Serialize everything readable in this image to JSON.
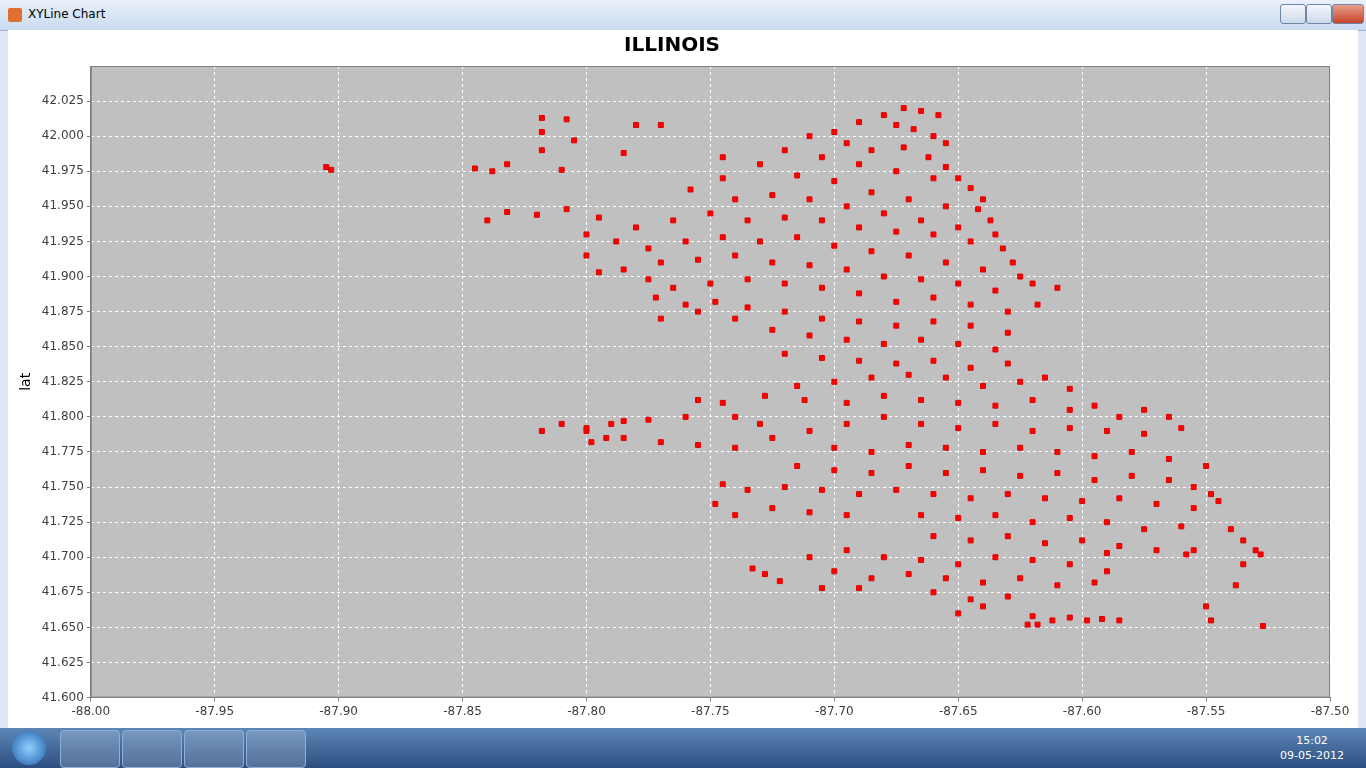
{
  "window": {
    "title": "XYLine Chart"
  },
  "taskbar": {
    "time": "15:02",
    "date": "09-05-2012"
  },
  "chart_data": {
    "type": "scatter",
    "title": "ILLINOIS",
    "y_label": "lat",
    "color": "#ff0000",
    "marker": "square",
    "grid": true,
    "xlim": [
      -88.0,
      -87.5
    ],
    "ylim": [
      41.6,
      42.05
    ],
    "xticks": [
      {
        "value": -88.0,
        "label": "-88.00"
      },
      {
        "value": -87.95,
        "label": "-87.95"
      },
      {
        "value": -87.9,
        "label": "-87.90"
      },
      {
        "value": -87.85,
        "label": "-87.85"
      },
      {
        "value": -87.8,
        "label": "-87.80"
      },
      {
        "value": -87.75,
        "label": "-87.75"
      },
      {
        "value": -87.7,
        "label": "-87.70"
      },
      {
        "value": -87.65,
        "label": "-87.65"
      },
      {
        "value": -87.6,
        "label": "-87.60"
      },
      {
        "value": -87.55,
        "label": "-87.55"
      },
      {
        "value": -87.5,
        "label": "-87.50"
      }
    ],
    "yticks": [
      {
        "value": 41.6,
        "label": "41.600"
      },
      {
        "value": 41.625,
        "label": "41.625"
      },
      {
        "value": 41.65,
        "label": "41.650"
      },
      {
        "value": 41.675,
        "label": "41.675"
      },
      {
        "value": 41.7,
        "label": "41.700"
      },
      {
        "value": 41.725,
        "label": "41.725"
      },
      {
        "value": 41.75,
        "label": "41.750"
      },
      {
        "value": 41.775,
        "label": "41.775"
      },
      {
        "value": 41.8,
        "label": "41.800"
      },
      {
        "value": 41.825,
        "label": "41.825"
      },
      {
        "value": 41.85,
        "label": "41.850"
      },
      {
        "value": 41.875,
        "label": "41.875"
      },
      {
        "value": 41.9,
        "label": "41.900"
      },
      {
        "value": 41.925,
        "label": "41.925"
      },
      {
        "value": 41.95,
        "label": "41.950"
      },
      {
        "value": 41.975,
        "label": "41.975"
      },
      {
        "value": 42.0,
        "label": "42.000"
      },
      {
        "value": 42.025,
        "label": "42.025"
      }
    ],
    "x": [
      -87.672,
      -87.665,
      -87.658,
      -87.68,
      -87.69,
      -87.675,
      -87.668,
      -87.66,
      -87.655,
      -87.7,
      -87.71,
      -87.695,
      -87.685,
      -87.672,
      -87.662,
      -87.655,
      -87.65,
      -87.645,
      -87.66,
      -87.675,
      -87.69,
      -87.705,
      -87.72,
      -87.73,
      -87.715,
      -87.7,
      -87.685,
      -87.67,
      -87.655,
      -87.642,
      -87.64,
      -87.745,
      -87.758,
      -87.74,
      -87.725,
      -87.71,
      -87.695,
      -87.68,
      -87.665,
      -87.65,
      -87.637,
      -87.635,
      -87.632,
      -87.628,
      -87.625,
      -87.645,
      -87.66,
      -87.675,
      -87.69,
      -87.705,
      -87.72,
      -87.735,
      -87.75,
      -87.765,
      -87.78,
      -87.795,
      -87.808,
      -87.82,
      -87.832,
      -87.84,
      -87.8,
      -87.788,
      -87.775,
      -87.76,
      -87.745,
      -87.73,
      -87.715,
      -87.7,
      -87.685,
      -87.67,
      -87.655,
      -87.64,
      -87.8,
      -87.795,
      -87.785,
      -87.77,
      -87.755,
      -87.74,
      -87.725,
      -87.71,
      -87.695,
      -87.68,
      -87.665,
      -87.65,
      -87.635,
      -87.62,
      -87.61,
      -87.618,
      -87.63,
      -87.645,
      -87.66,
      -87.675,
      -87.69,
      -87.705,
      -87.72,
      -87.735,
      -87.75,
      -87.765,
      -87.775,
      -87.772,
      -87.76,
      -87.748,
      -87.735,
      -87.72,
      -87.705,
      -87.69,
      -87.675,
      -87.66,
      -87.645,
      -87.63,
      -87.77,
      -87.755,
      -87.74,
      -87.725,
      -87.71,
      -87.695,
      -87.68,
      -87.665,
      -87.65,
      -87.635,
      -87.72,
      -87.705,
      -87.69,
      -87.675,
      -87.66,
      -87.645,
      -87.63,
      -87.625,
      -87.615,
      -87.605,
      -87.64,
      -87.655,
      -87.67,
      -87.685,
      -87.7,
      -87.715,
      -87.728,
      -87.712,
      -87.695,
      -87.68,
      -87.665,
      -87.65,
      -87.635,
      -87.62,
      -87.605,
      -87.595,
      -87.585,
      -87.575,
      -87.565,
      -87.745,
      -87.755,
      -87.74,
      -87.73,
      -87.76,
      -87.775,
      -87.79,
      -87.8,
      -87.798,
      -87.785,
      -87.77,
      -87.755,
      -87.74,
      -87.725,
      -87.71,
      -87.695,
      -87.68,
      -87.665,
      -87.65,
      -87.635,
      -87.62,
      -87.605,
      -87.59,
      -87.575,
      -87.56,
      -87.7,
      -87.685,
      -87.67,
      -87.655,
      -87.64,
      -87.625,
      -87.61,
      -87.595,
      -87.58,
      -87.565,
      -87.55,
      -87.715,
      -87.7,
      -87.685,
      -87.67,
      -87.655,
      -87.64,
      -87.625,
      -87.61,
      -87.595,
      -87.58,
      -87.565,
      -87.555,
      -87.548,
      -87.745,
      -87.735,
      -87.72,
      -87.705,
      -87.69,
      -87.675,
      -87.66,
      -87.645,
      -87.63,
      -87.615,
      -87.6,
      -87.585,
      -87.57,
      -87.555,
      -87.545,
      -87.748,
      -87.74,
      -87.725,
      -87.71,
      -87.695,
      -87.665,
      -87.65,
      -87.635,
      -87.62,
      -87.605,
      -87.59,
      -87.575,
      -87.56,
      -87.66,
      -87.645,
      -87.63,
      -87.615,
      -87.6,
      -87.585,
      -87.57,
      -87.558,
      -87.54,
      -87.535,
      -87.53,
      -87.528,
      -87.68,
      -87.695,
      -87.71,
      -87.665,
      -87.65,
      -87.635,
      -87.62,
      -87.605,
      -87.59,
      -87.7,
      -87.685,
      -87.67,
      -87.655,
      -87.64,
      -87.625,
      -87.61,
      -87.595,
      -87.705,
      -87.69,
      -87.66,
      -87.645,
      -87.63,
      -87.65,
      -87.64,
      -87.62,
      -87.618,
      -87.612,
      -87.605,
      -87.598,
      -87.592,
      -87.585,
      -87.622,
      -87.722,
      -87.733,
      -87.728,
      -87.548,
      -87.55,
      -87.527,
      -87.538,
      -87.535,
      -87.555,
      -87.59,
      -87.8,
      -87.792,
      -87.785,
      -87.81,
      -87.818,
      -87.905,
      -87.903,
      -87.845,
      -87.838,
      -87.832,
      -87.818,
      -87.808,
      -87.818,
      -87.818,
      -87.805,
      -87.81,
      -87.78,
      -87.77,
      -87.785,
      -87.745
    ],
    "values": [
      42.02,
      42.018,
      42.015,
      42.015,
      42.01,
      42.008,
      42.005,
      42.0,
      41.995,
      42.003,
      42.0,
      41.995,
      41.99,
      41.992,
      41.985,
      41.978,
      41.97,
      41.963,
      41.97,
      41.975,
      41.98,
      41.985,
      41.99,
      41.98,
      41.972,
      41.968,
      41.96,
      41.955,
      41.95,
      41.948,
      41.955,
      41.97,
      41.962,
      41.955,
      41.958,
      41.955,
      41.95,
      41.945,
      41.94,
      41.935,
      41.94,
      41.93,
      41.92,
      41.91,
      41.9,
      41.925,
      41.93,
      41.932,
      41.935,
      41.94,
      41.942,
      41.94,
      41.945,
      41.94,
      41.935,
      41.942,
      41.948,
      41.944,
      41.946,
      41.94,
      41.93,
      41.925,
      41.92,
      41.925,
      41.928,
      41.925,
      41.928,
      41.922,
      41.918,
      41.915,
      41.91,
      41.905,
      41.915,
      41.903,
      41.905,
      41.91,
      41.912,
      41.915,
      41.91,
      41.908,
      41.905,
      41.9,
      41.898,
      41.895,
      41.89,
      41.895,
      41.892,
      41.88,
      41.875,
      41.88,
      41.885,
      41.882,
      41.888,
      41.892,
      41.895,
      41.898,
      41.895,
      41.892,
      41.898,
      41.885,
      41.88,
      41.882,
      41.878,
      41.875,
      41.87,
      41.868,
      41.865,
      41.868,
      41.865,
      41.86,
      41.87,
      41.875,
      41.87,
      41.862,
      41.858,
      41.855,
      41.852,
      41.855,
      41.852,
      41.848,
      41.845,
      41.842,
      41.84,
      41.838,
      41.84,
      41.835,
      41.838,
      41.825,
      41.828,
      41.82,
      41.822,
      41.828,
      41.83,
      41.828,
      41.825,
      41.822,
      41.815,
      41.812,
      41.81,
      41.815,
      41.812,
      41.81,
      41.808,
      41.812,
      41.805,
      41.808,
      41.8,
      41.805,
      41.8,
      41.81,
      41.812,
      41.8,
      41.795,
      41.8,
      41.798,
      41.795,
      41.79,
      41.782,
      41.785,
      41.782,
      41.78,
      41.778,
      41.785,
      41.79,
      41.795,
      41.8,
      41.795,
      41.792,
      41.795,
      41.79,
      41.792,
      41.79,
      41.788,
      41.792,
      41.778,
      41.775,
      41.78,
      41.778,
      41.775,
      41.778,
      41.775,
      41.772,
      41.775,
      41.77,
      41.765,
      41.765,
      41.762,
      41.76,
      41.765,
      41.76,
      41.762,
      41.758,
      41.76,
      41.755,
      41.758,
      41.755,
      41.75,
      41.745,
      41.752,
      41.748,
      41.75,
      41.748,
      41.745,
      41.748,
      41.745,
      41.742,
      41.745,
      41.742,
      41.74,
      41.742,
      41.738,
      41.735,
      41.74,
      41.738,
      41.73,
      41.735,
      41.732,
      41.73,
      41.73,
      41.728,
      41.73,
      41.725,
      41.728,
      41.725,
      41.72,
      41.722,
      41.715,
      41.712,
      41.715,
      41.71,
      41.712,
      41.708,
      41.705,
      41.702,
      41.72,
      41.712,
      41.705,
      41.702,
      41.7,
      41.705,
      41.7,
      41.698,
      41.695,
      41.7,
      41.698,
      41.695,
      41.69,
      41.69,
      41.685,
      41.688,
      41.685,
      41.682,
      41.685,
      41.68,
      41.682,
      41.678,
      41.678,
      41.675,
      41.67,
      41.672,
      41.66,
      41.665,
      41.658,
      41.652,
      41.655,
      41.657,
      41.655,
      41.656,
      41.655,
      41.652,
      41.683,
      41.692,
      41.688,
      41.655,
      41.665,
      41.651,
      41.68,
      41.695,
      41.705,
      41.703,
      41.792,
      41.785,
      41.797,
      41.795,
      41.79,
      41.978,
      41.976,
      41.977,
      41.975,
      41.98,
      42.013,
      42.012,
      42.003,
      41.99,
      41.997,
      41.976,
      42.008,
      42.008,
      41.988,
      41.985
    ]
  }
}
